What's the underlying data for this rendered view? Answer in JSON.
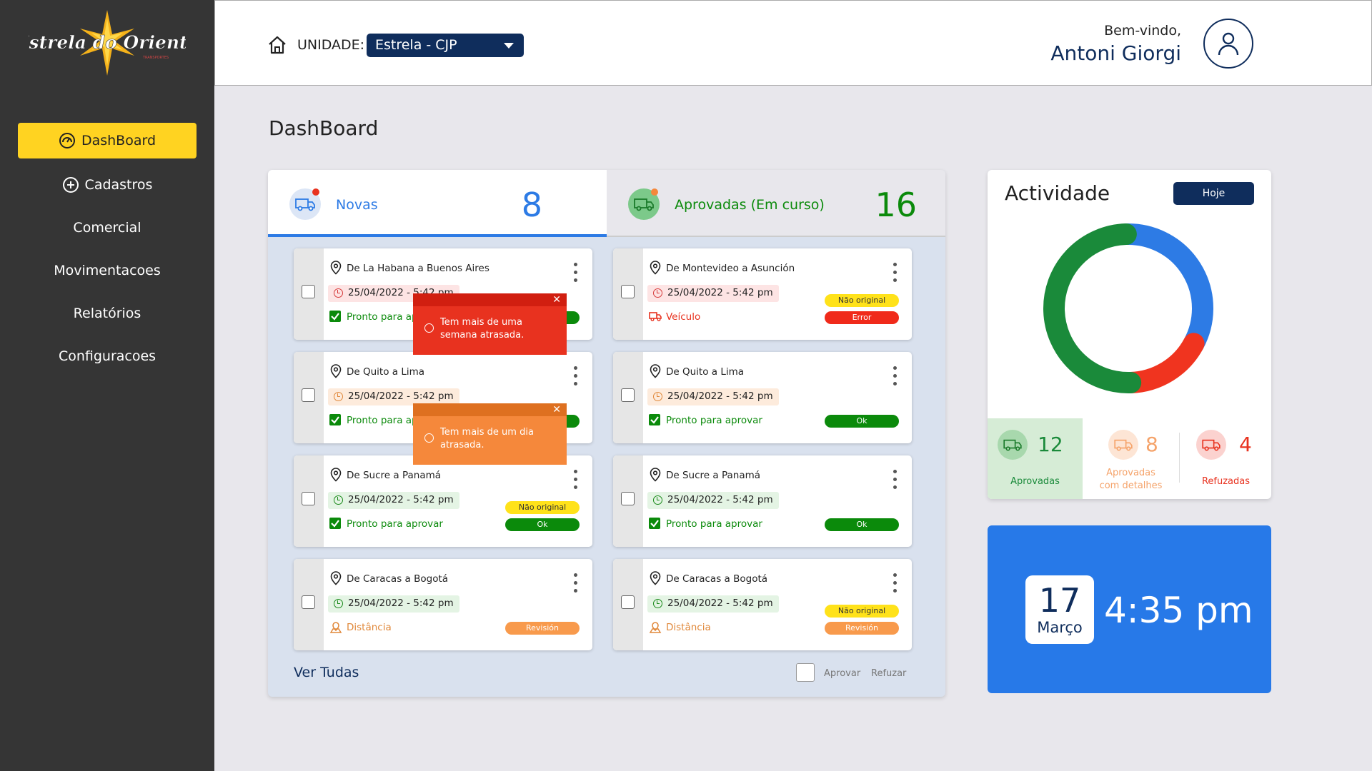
{
  "brand": {
    "logo_text": "Estrela do Oriente",
    "logo_subtext": "TRANSPORTES"
  },
  "sidebar": {
    "items": [
      {
        "label": "DashBoard",
        "active": true
      },
      {
        "label": "Cadastros"
      },
      {
        "label": "Comercial"
      },
      {
        "label": "Movimentacoes"
      },
      {
        "label": "Relatórios"
      },
      {
        "label": "Configuracoes"
      }
    ]
  },
  "header": {
    "unit_label": "UNIDADE:",
    "unit_value": "Estrela - CJP",
    "welcome": "Bem-vindo,",
    "user_name": "Antoni Giorgi"
  },
  "page": {
    "title": "DashBoard"
  },
  "orders": {
    "tabs": [
      {
        "label": "Novas",
        "count": "8"
      },
      {
        "label": "Aprovadas",
        "label_suffix": "(Em curso)",
        "count": "16"
      }
    ],
    "novas": [
      {
        "route": "De La Habana a Buenos Aires",
        "date": "25/04/2022 - 5:42 pm",
        "date_color": "red",
        "status": "Pronto para aprovar",
        "status_color": "green",
        "pills": [
          {
            "text": "Ok",
            "type": "ok"
          }
        ]
      },
      {
        "route": "De Quito a Lima",
        "date": "25/04/2022 - 5:42 pm",
        "date_color": "orange",
        "status": "Pronto para aprovar",
        "status_color": "green",
        "pills": [
          {
            "text": "Ok",
            "type": "ok"
          }
        ]
      },
      {
        "route": "De Sucre a Panamá",
        "date": "25/04/2022 - 5:42 pm",
        "date_color": "green",
        "status": "Pronto para aprovar",
        "status_color": "green",
        "pills": [
          {
            "text": "Não original",
            "type": "nao"
          },
          {
            "text": "Ok",
            "type": "ok"
          }
        ]
      },
      {
        "route": "De Caracas a Bogotá",
        "date": "25/04/2022 - 5:42 pm",
        "date_color": "green",
        "status": "Distância",
        "status_color": "orange",
        "pills": [
          {
            "text": "Revisión",
            "type": "rev"
          }
        ]
      }
    ],
    "aprovadas": [
      {
        "route": "De Montevideo a Asunción",
        "date": "25/04/2022 - 5:42 pm",
        "date_color": "red",
        "status": "Veículo",
        "status_color": "red",
        "pills": [
          {
            "text": "Não original",
            "type": "nao"
          },
          {
            "text": "Error",
            "type": "err"
          }
        ]
      },
      {
        "route": "De Quito a Lima",
        "date": "25/04/2022 - 5:42 pm",
        "date_color": "orange",
        "status": "Pronto para aprovar",
        "status_color": "green",
        "pills": [
          {
            "text": "Ok",
            "type": "ok"
          }
        ]
      },
      {
        "route": "De Sucre a Panamá",
        "date": "25/04/2022 - 5:42 pm",
        "date_color": "green",
        "status": "Pronto para aprovar",
        "status_color": "green",
        "pills": [
          {
            "text": "Ok",
            "type": "ok"
          }
        ]
      },
      {
        "route": "De Caracas a Bogotá",
        "date": "25/04/2022 - 5:42 pm",
        "date_color": "green",
        "status": "Distância",
        "status_color": "orange",
        "pills": [
          {
            "text": "Não original",
            "type": "nao"
          },
          {
            "text": "Revisión",
            "type": "rev"
          }
        ]
      }
    ],
    "toasts": [
      {
        "message": "Tem mais de uma semana atrasada.",
        "color": "#e8321f"
      },
      {
        "message": "Tem mais de um dia atrasada.",
        "color": "#f5883b"
      }
    ],
    "footer": {
      "see_all": "Ver Tudas",
      "approve": "Aprovar",
      "refuse": "Refuzar"
    }
  },
  "activity": {
    "title": "Actividade",
    "filter": "Hoje",
    "stats": [
      {
        "value": "12",
        "label": "Aprovadas",
        "color": "#1a8a3a"
      },
      {
        "value": "8",
        "label": "Aprovadas com detalhes",
        "color": "#f5a36a"
      },
      {
        "value": "4",
        "label": "Refuzadas",
        "color": "#e8321f"
      }
    ]
  },
  "chart_data": {
    "type": "pie",
    "categories": [
      "Aprovadas",
      "Aprovadas com detalhes",
      "Refuzadas"
    ],
    "values": [
      12,
      8,
      4
    ],
    "colors": [
      "#1a8a3a",
      "#2d7be5",
      "#f0341f"
    ],
    "title": "Actividade"
  },
  "clock": {
    "day": "17",
    "month": "Março",
    "time": "4:35 pm"
  },
  "colors": {
    "sidebar_bg": "#353535",
    "active_nav": "#ffd321",
    "navy": "#0f2d5c",
    "accent_blue": "#2779e8",
    "green": "#0b8a0b",
    "red": "#f02a1a",
    "orange": "#f89a4c"
  }
}
